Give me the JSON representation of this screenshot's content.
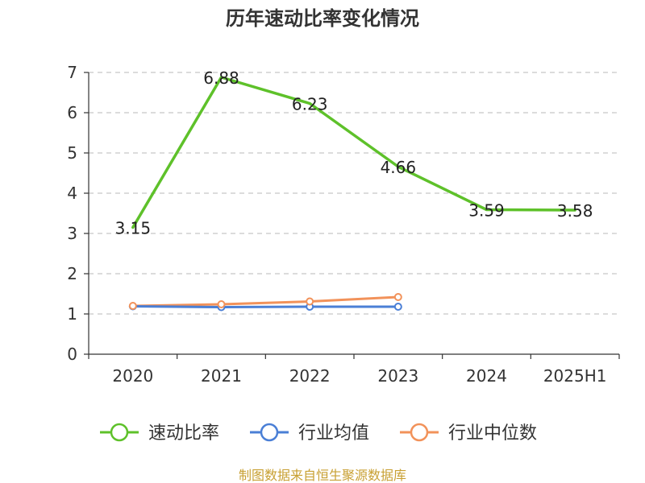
{
  "chart_data": {
    "type": "line",
    "title": "历年速动比率变化情况",
    "categories": [
      "2020",
      "2021",
      "2022",
      "2023",
      "2024",
      "2025H1"
    ],
    "ylim": [
      0,
      7
    ],
    "yticks": [
      0,
      1,
      2,
      3,
      4,
      5,
      6,
      7
    ],
    "grid": true,
    "legend_position": "bottom",
    "series": [
      {
        "name": "速动比率",
        "color": "#5ec12a",
        "values": [
          3.15,
          6.88,
          6.23,
          4.66,
          3.59,
          3.58
        ],
        "show_labels": true,
        "show_markers": false
      },
      {
        "name": "行业均值",
        "color": "#4a7fd6",
        "values": [
          1.19,
          1.17,
          1.18,
          1.18,
          null,
          null
        ],
        "show_labels": false,
        "show_markers": true
      },
      {
        "name": "行业中位数",
        "color": "#f2925a",
        "values": [
          1.2,
          1.24,
          1.31,
          1.42,
          null,
          null
        ],
        "show_labels": false,
        "show_markers": true
      }
    ],
    "source": "制图数据来自恒生聚源数据库",
    "source_color": "#c8a033"
  }
}
